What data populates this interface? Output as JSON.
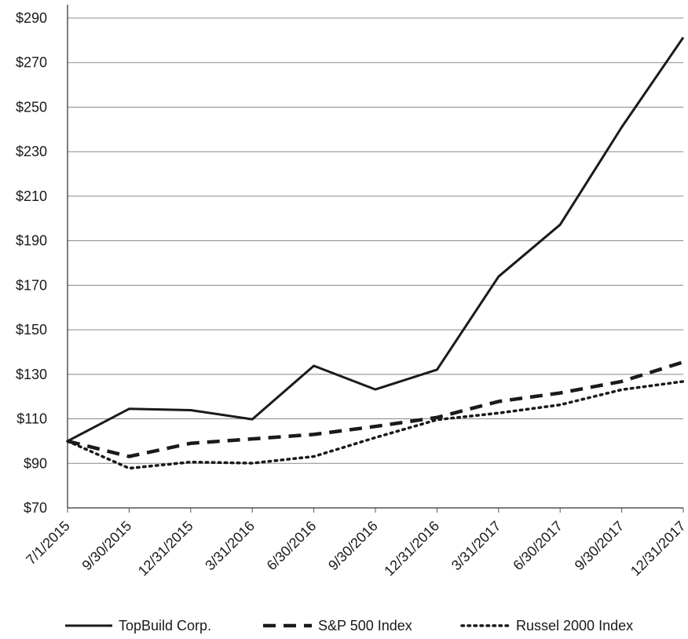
{
  "chart_data": {
    "type": "line",
    "title": "",
    "xlabel": "",
    "ylabel": "",
    "categories": [
      "7/1/2015",
      "9/30/2015",
      "12/31/2015",
      "3/31/2016",
      "6/30/2016",
      "9/30/2016",
      "12/31/2016",
      "3/31/2017",
      "6/30/2017",
      "9/30/2017",
      "12/31/2017"
    ],
    "y_tick_labels": [
      "$70",
      "$90",
      "$110",
      "$130",
      "$150",
      "$170",
      "$190",
      "$210",
      "$230",
      "$250",
      "$270",
      "$290"
    ],
    "ylim": [
      70,
      296
    ],
    "grid": "horizontal",
    "legend_position": "bottom",
    "series": [
      {
        "name": "TopBuild Corp.",
        "style": "solid",
        "values": [
          100,
          114.5,
          113.9,
          109.8,
          133.8,
          123.2,
          132.1,
          173.9,
          197.2,
          241,
          281.3
        ]
      },
      {
        "name": "S&P 500 Index",
        "style": "dashed",
        "values": [
          100,
          93.1,
          99,
          101,
          103,
          106.6,
          110.6,
          117.8,
          121.6,
          126.8,
          135.5
        ]
      },
      {
        "name": "Russel 2000 Index",
        "style": "dotted",
        "values": [
          100,
          87.8,
          90.6,
          90.1,
          93.1,
          101.6,
          109.6,
          112.6,
          116.3,
          123.1,
          126.8
        ]
      }
    ]
  },
  "colors": {
    "line": "#1a1a1a",
    "grid": "#888888",
    "axis": "#555555"
  }
}
